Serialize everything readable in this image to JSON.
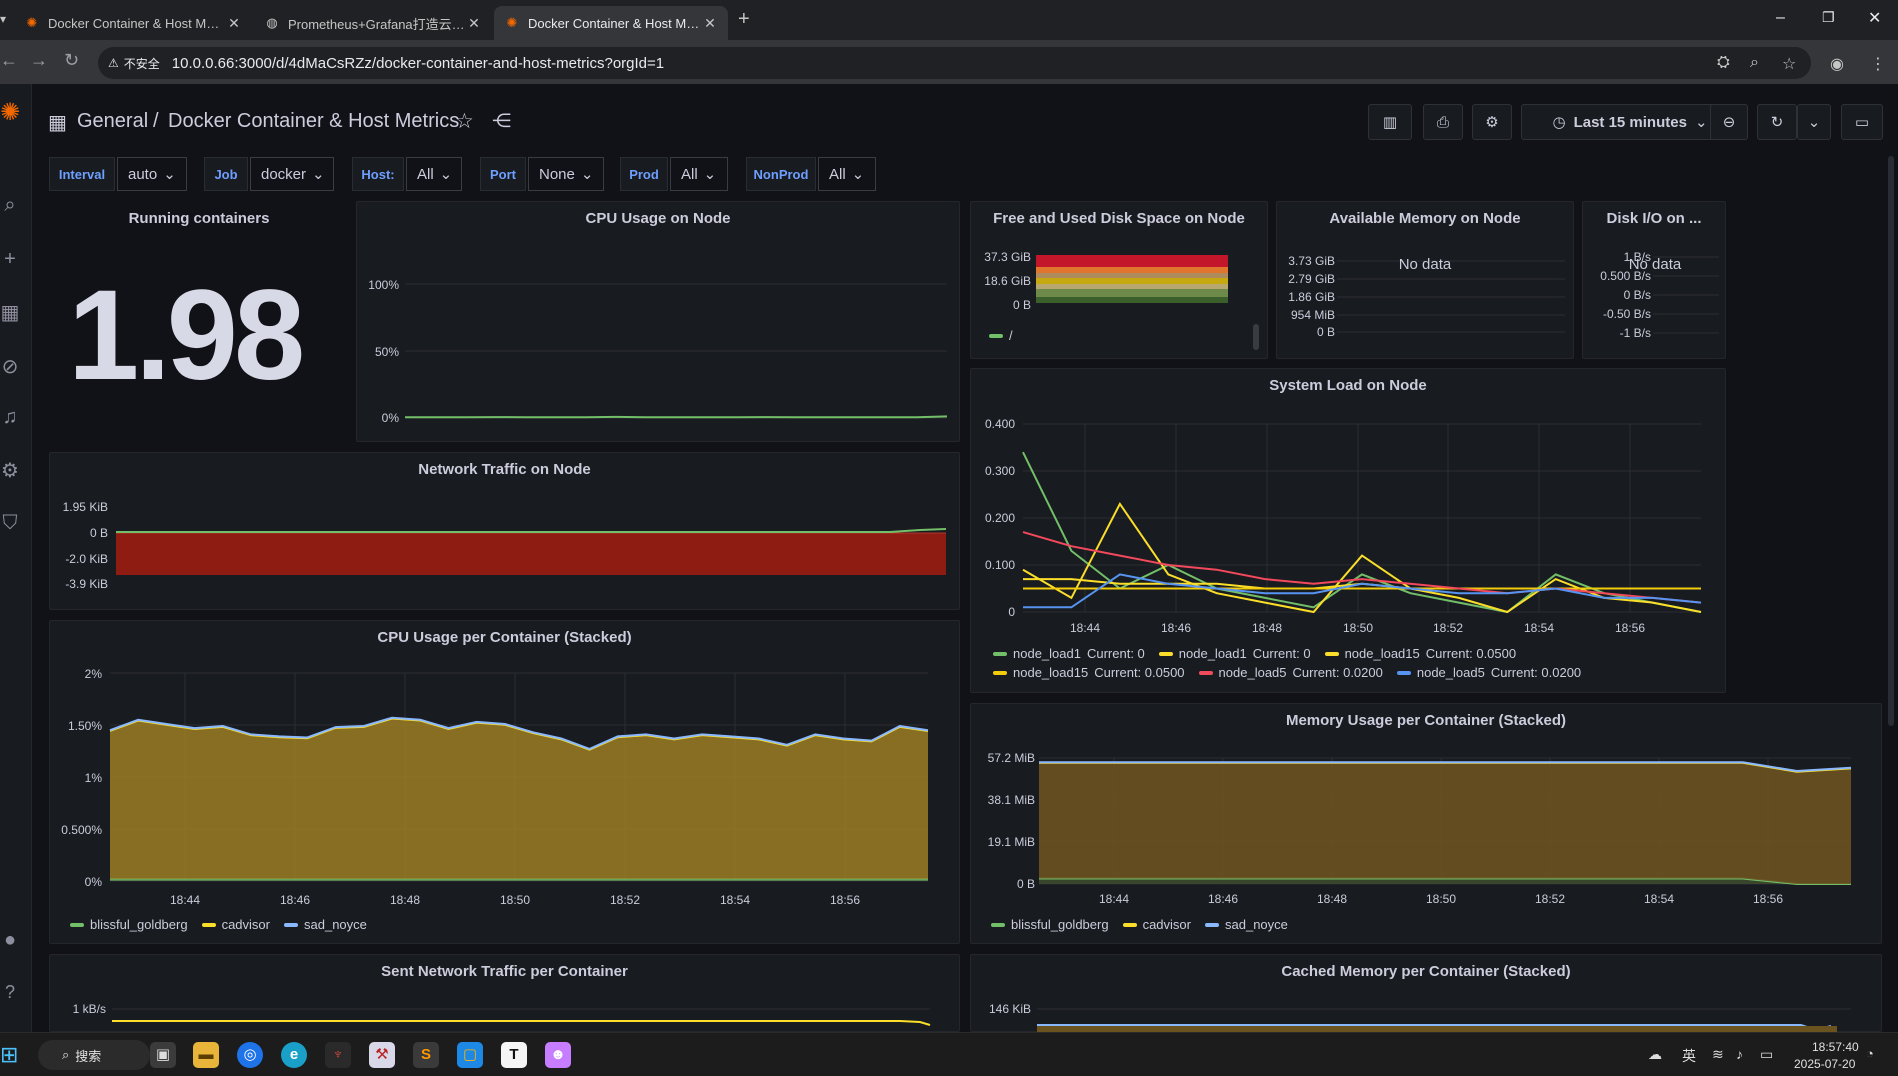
{
  "browser": {
    "tabs": [
      {
        "title": "Docker Container & Host Metrics",
        "active": false
      },
      {
        "title": "Prometheus+Grafana打造云原生监控",
        "active": false
      },
      {
        "title": "Docker Container & Host Metrics",
        "active": true
      }
    ],
    "security_label": "不安全",
    "url": "10.0.0.66:3000/d/4dMaCsRZz/docker-container-and-host-metrics?orgId=1"
  },
  "breadcrumb": {
    "folder": "General",
    "separator": "/",
    "title": "Docker Container & Host Metrics"
  },
  "toolbar": {
    "time_range": "Last 15 minutes"
  },
  "variables": [
    {
      "label": "Interval",
      "value": "auto"
    },
    {
      "label": "Job",
      "value": "docker"
    },
    {
      "label": "Host:",
      "value": "All"
    },
    {
      "label": "Port",
      "value": "None"
    },
    {
      "label": "Prod",
      "value": "All"
    },
    {
      "label": "NonProd",
      "value": "All"
    }
  ],
  "panels": {
    "running": {
      "title": "Running containers",
      "value": "1.98"
    },
    "cpu_node": {
      "title": "CPU Usage on Node",
      "y_ticks": [
        "100%",
        "50%",
        "0%"
      ]
    },
    "disk": {
      "title": "Free and Used Disk Space on Node",
      "y_ticks": [
        "37.3 GiB",
        "18.6 GiB",
        "0 B"
      ],
      "legend": [
        "/"
      ]
    },
    "mem_avail": {
      "title": "Available Memory on Node",
      "no_data": "No data",
      "y_ticks": [
        "3.73 GiB",
        "2.79 GiB",
        "1.86 GiB",
        "954 MiB",
        "0 B"
      ]
    },
    "diskio": {
      "title": "Disk I/O on ...",
      "no_data": "No data",
      "y_ticks": [
        "1 B/s",
        "0.500 B/s",
        "0 B/s",
        "-0.50 B/s",
        "-1 B/s"
      ]
    },
    "sysload": {
      "title": "System Load on Node",
      "y_ticks": [
        "0.400",
        "0.300",
        "0.200",
        "0.100",
        "0"
      ],
      "x_ticks": [
        "18:44",
        "18:46",
        "18:48",
        "18:50",
        "18:52",
        "18:54",
        "18:56"
      ],
      "legend": [
        {
          "name": "node_load1",
          "current": "Current: 0",
          "color": "#73bf69"
        },
        {
          "name": "node_load1",
          "current": "Current: 0",
          "color": "#fade2a"
        },
        {
          "name": "node_load15",
          "current": "Current: 0.0500",
          "color": "#fade2a"
        },
        {
          "name": "node_load15",
          "current": "Current: 0.0500",
          "color": "#f2cc0c"
        },
        {
          "name": "node_load5",
          "current": "Current: 0.0200",
          "color": "#f2495c"
        },
        {
          "name": "node_load5",
          "current": "Current: 0.0200",
          "color": "#5794f2"
        }
      ]
    },
    "network": {
      "title": "Network Traffic on Node",
      "y_ticks": [
        "1.95 KiB",
        "0 B",
        "-2.0 KiB",
        "-3.9 KiB"
      ]
    },
    "cpu_container": {
      "title": "CPU Usage per Container (Stacked)",
      "y_ticks": [
        "2%",
        "1.50%",
        "1%",
        "0.500%",
        "0%"
      ],
      "x_ticks": [
        "18:44",
        "18:46",
        "18:48",
        "18:50",
        "18:52",
        "18:54",
        "18:56"
      ],
      "legend": [
        {
          "name": "blissful_goldberg",
          "color": "#73bf69"
        },
        {
          "name": "cadvisor",
          "color": "#fade2a"
        },
        {
          "name": "sad_noyce",
          "color": "#8ab8ff"
        }
      ]
    },
    "mem_container": {
      "title": "Memory Usage per Container (Stacked)",
      "y_ticks": [
        "57.2 MiB",
        "38.1 MiB",
        "19.1 MiB",
        "0 B"
      ],
      "x_ticks": [
        "18:44",
        "18:46",
        "18:48",
        "18:50",
        "18:52",
        "18:54",
        "18:56"
      ],
      "legend": [
        {
          "name": "blissful_goldberg",
          "color": "#73bf69"
        },
        {
          "name": "cadvisor",
          "color": "#fade2a"
        },
        {
          "name": "sad_noyce",
          "color": "#8ab8ff"
        }
      ]
    },
    "sent_net": {
      "title": "Sent Network Traffic per Container",
      "y_ticks": [
        "1 kB/s"
      ]
    },
    "cached_mem": {
      "title": "Cached Memory per Container (Stacked)",
      "y_ticks": [
        "146 KiB"
      ]
    }
  },
  "chart_data": [
    {
      "type": "line",
      "title": "CPU Usage on Node",
      "ylim": [
        0,
        100
      ],
      "series": [
        {
          "values": [
            0.5,
            0.6,
            0.5,
            0.7,
            0.6,
            0.5,
            0.6,
            0.8,
            0.6,
            0.5,
            0.6,
            0.5,
            0.7,
            0.6,
            0.5,
            0.6,
            0.5,
            0.6,
            1.2
          ]
        }
      ]
    },
    {
      "type": "line",
      "title": "System Load on Node",
      "x": [
        "18:43",
        "18:44",
        "18:45",
        "18:46",
        "18:47",
        "18:48",
        "18:49",
        "18:50",
        "18:51",
        "18:52",
        "18:53",
        "18:54",
        "18:55",
        "18:56",
        "18:57"
      ],
      "ylim": [
        0,
        0.4
      ],
      "series": [
        {
          "name": "node_load1",
          "values": [
            0.34,
            0.13,
            0.05,
            0.1,
            0.05,
            0.03,
            0.01,
            0.08,
            0.04,
            0.02,
            0.0,
            0.08,
            0.04,
            0.02,
            0.0
          ]
        },
        {
          "name": "node_load1",
          "values": [
            0.09,
            0.03,
            0.23,
            0.08,
            0.04,
            0.02,
            0.0,
            0.12,
            0.05,
            0.03,
            0.0,
            0.07,
            0.03,
            0.02,
            0.0
          ]
        },
        {
          "name": "node_load15",
          "values": [
            0.07,
            0.07,
            0.06,
            0.06,
            0.06,
            0.05,
            0.05,
            0.06,
            0.05,
            0.05,
            0.05,
            0.05,
            0.05,
            0.05,
            0.05
          ]
        },
        {
          "name": "node_load15",
          "values": [
            0.05,
            0.05,
            0.05,
            0.05,
            0.05,
            0.05,
            0.05,
            0.05,
            0.05,
            0.05,
            0.05,
            0.05,
            0.05,
            0.05,
            0.05
          ]
        },
        {
          "name": "node_load5",
          "values": [
            0.17,
            0.14,
            0.12,
            0.1,
            0.09,
            0.07,
            0.06,
            0.07,
            0.06,
            0.05,
            0.04,
            0.05,
            0.04,
            0.03,
            0.02
          ]
        },
        {
          "name": "node_load5",
          "values": [
            0.01,
            0.01,
            0.08,
            0.06,
            0.05,
            0.04,
            0.04,
            0.06,
            0.05,
            0.04,
            0.04,
            0.05,
            0.03,
            0.03,
            0.02
          ]
        }
      ]
    },
    {
      "type": "area",
      "title": "CPU Usage per Container (Stacked)",
      "ylim": [
        0,
        2
      ],
      "x": [
        "18:43",
        "18:43:30",
        "18:44",
        "18:44:30",
        "18:45",
        "18:45:30",
        "18:46",
        "18:46:30",
        "18:47",
        "18:47:30",
        "18:48",
        "18:48:30",
        "18:49",
        "18:49:30",
        "18:50",
        "18:50:30",
        "18:51",
        "18:51:30",
        "18:52",
        "18:52:30",
        "18:53",
        "18:53:30",
        "18:54",
        "18:54:30",
        "18:55",
        "18:55:30",
        "18:56",
        "18:56:30",
        "18:57",
        "18:57:30"
      ],
      "series": [
        {
          "name": "blissful_goldberg",
          "values": [
            0.02,
            0.02,
            0.02,
            0.02,
            0.02,
            0.02,
            0.02,
            0.02,
            0.02,
            0.02,
            0.02,
            0.02,
            0.02,
            0.02,
            0.02,
            0.02,
            0.02,
            0.02,
            0.02,
            0.02,
            0.02,
            0.02,
            0.02,
            0.02,
            0.02,
            0.02,
            0.02,
            0.02,
            0.02,
            0.02
          ]
        },
        {
          "name": "cadvisor",
          "values": [
            1.42,
            1.52,
            1.48,
            1.44,
            1.46,
            1.38,
            1.36,
            1.35,
            1.45,
            1.46,
            1.54,
            1.52,
            1.44,
            1.5,
            1.48,
            1.4,
            1.34,
            1.24,
            1.36,
            1.38,
            1.34,
            1.38,
            1.36,
            1.34,
            1.28,
            1.38,
            1.34,
            1.32,
            1.46,
            1.42
          ]
        },
        {
          "name": "sad_noyce",
          "values": [
            0.01,
            0.01,
            0.01,
            0.01,
            0.01,
            0.01,
            0.01,
            0.01,
            0.01,
            0.01,
            0.01,
            0.01,
            0.01,
            0.01,
            0.01,
            0.01,
            0.01,
            0.01,
            0.01,
            0.01,
            0.01,
            0.01,
            0.01,
            0.01,
            0.01,
            0.01,
            0.01,
            0.01,
            0.01,
            0.01
          ]
        }
      ]
    },
    {
      "type": "area",
      "title": "Memory Usage per Container (Stacked)",
      "ylim": [
        0,
        57.2
      ],
      "series": [
        {
          "name": "blissful_goldberg",
          "values": [
            2.5,
            2.5,
            2.5,
            2.5,
            2.5,
            2.5,
            2.5,
            2.5,
            2.5,
            2.5,
            2.5,
            2.5,
            2.5,
            2.5,
            0.0,
            0.0
          ]
        },
        {
          "name": "cadvisor",
          "values": [
            52.5,
            52.5,
            52.5,
            52.5,
            52.5,
            52.5,
            52.5,
            52.5,
            52.5,
            52.5,
            52.5,
            52.5,
            52.5,
            52.5,
            51.0,
            52.5
          ]
        },
        {
          "name": "sad_noyce",
          "values": [
            0.3,
            0.3,
            0.3,
            0.3,
            0.3,
            0.3,
            0.3,
            0.3,
            0.3,
            0.3,
            0.3,
            0.3,
            0.3,
            0.3,
            0.3,
            0.3
          ]
        }
      ]
    }
  ],
  "taskbar": {
    "search_label": "搜索",
    "ime": "英",
    "time": "18:57:40",
    "date": "2025-07-20"
  }
}
